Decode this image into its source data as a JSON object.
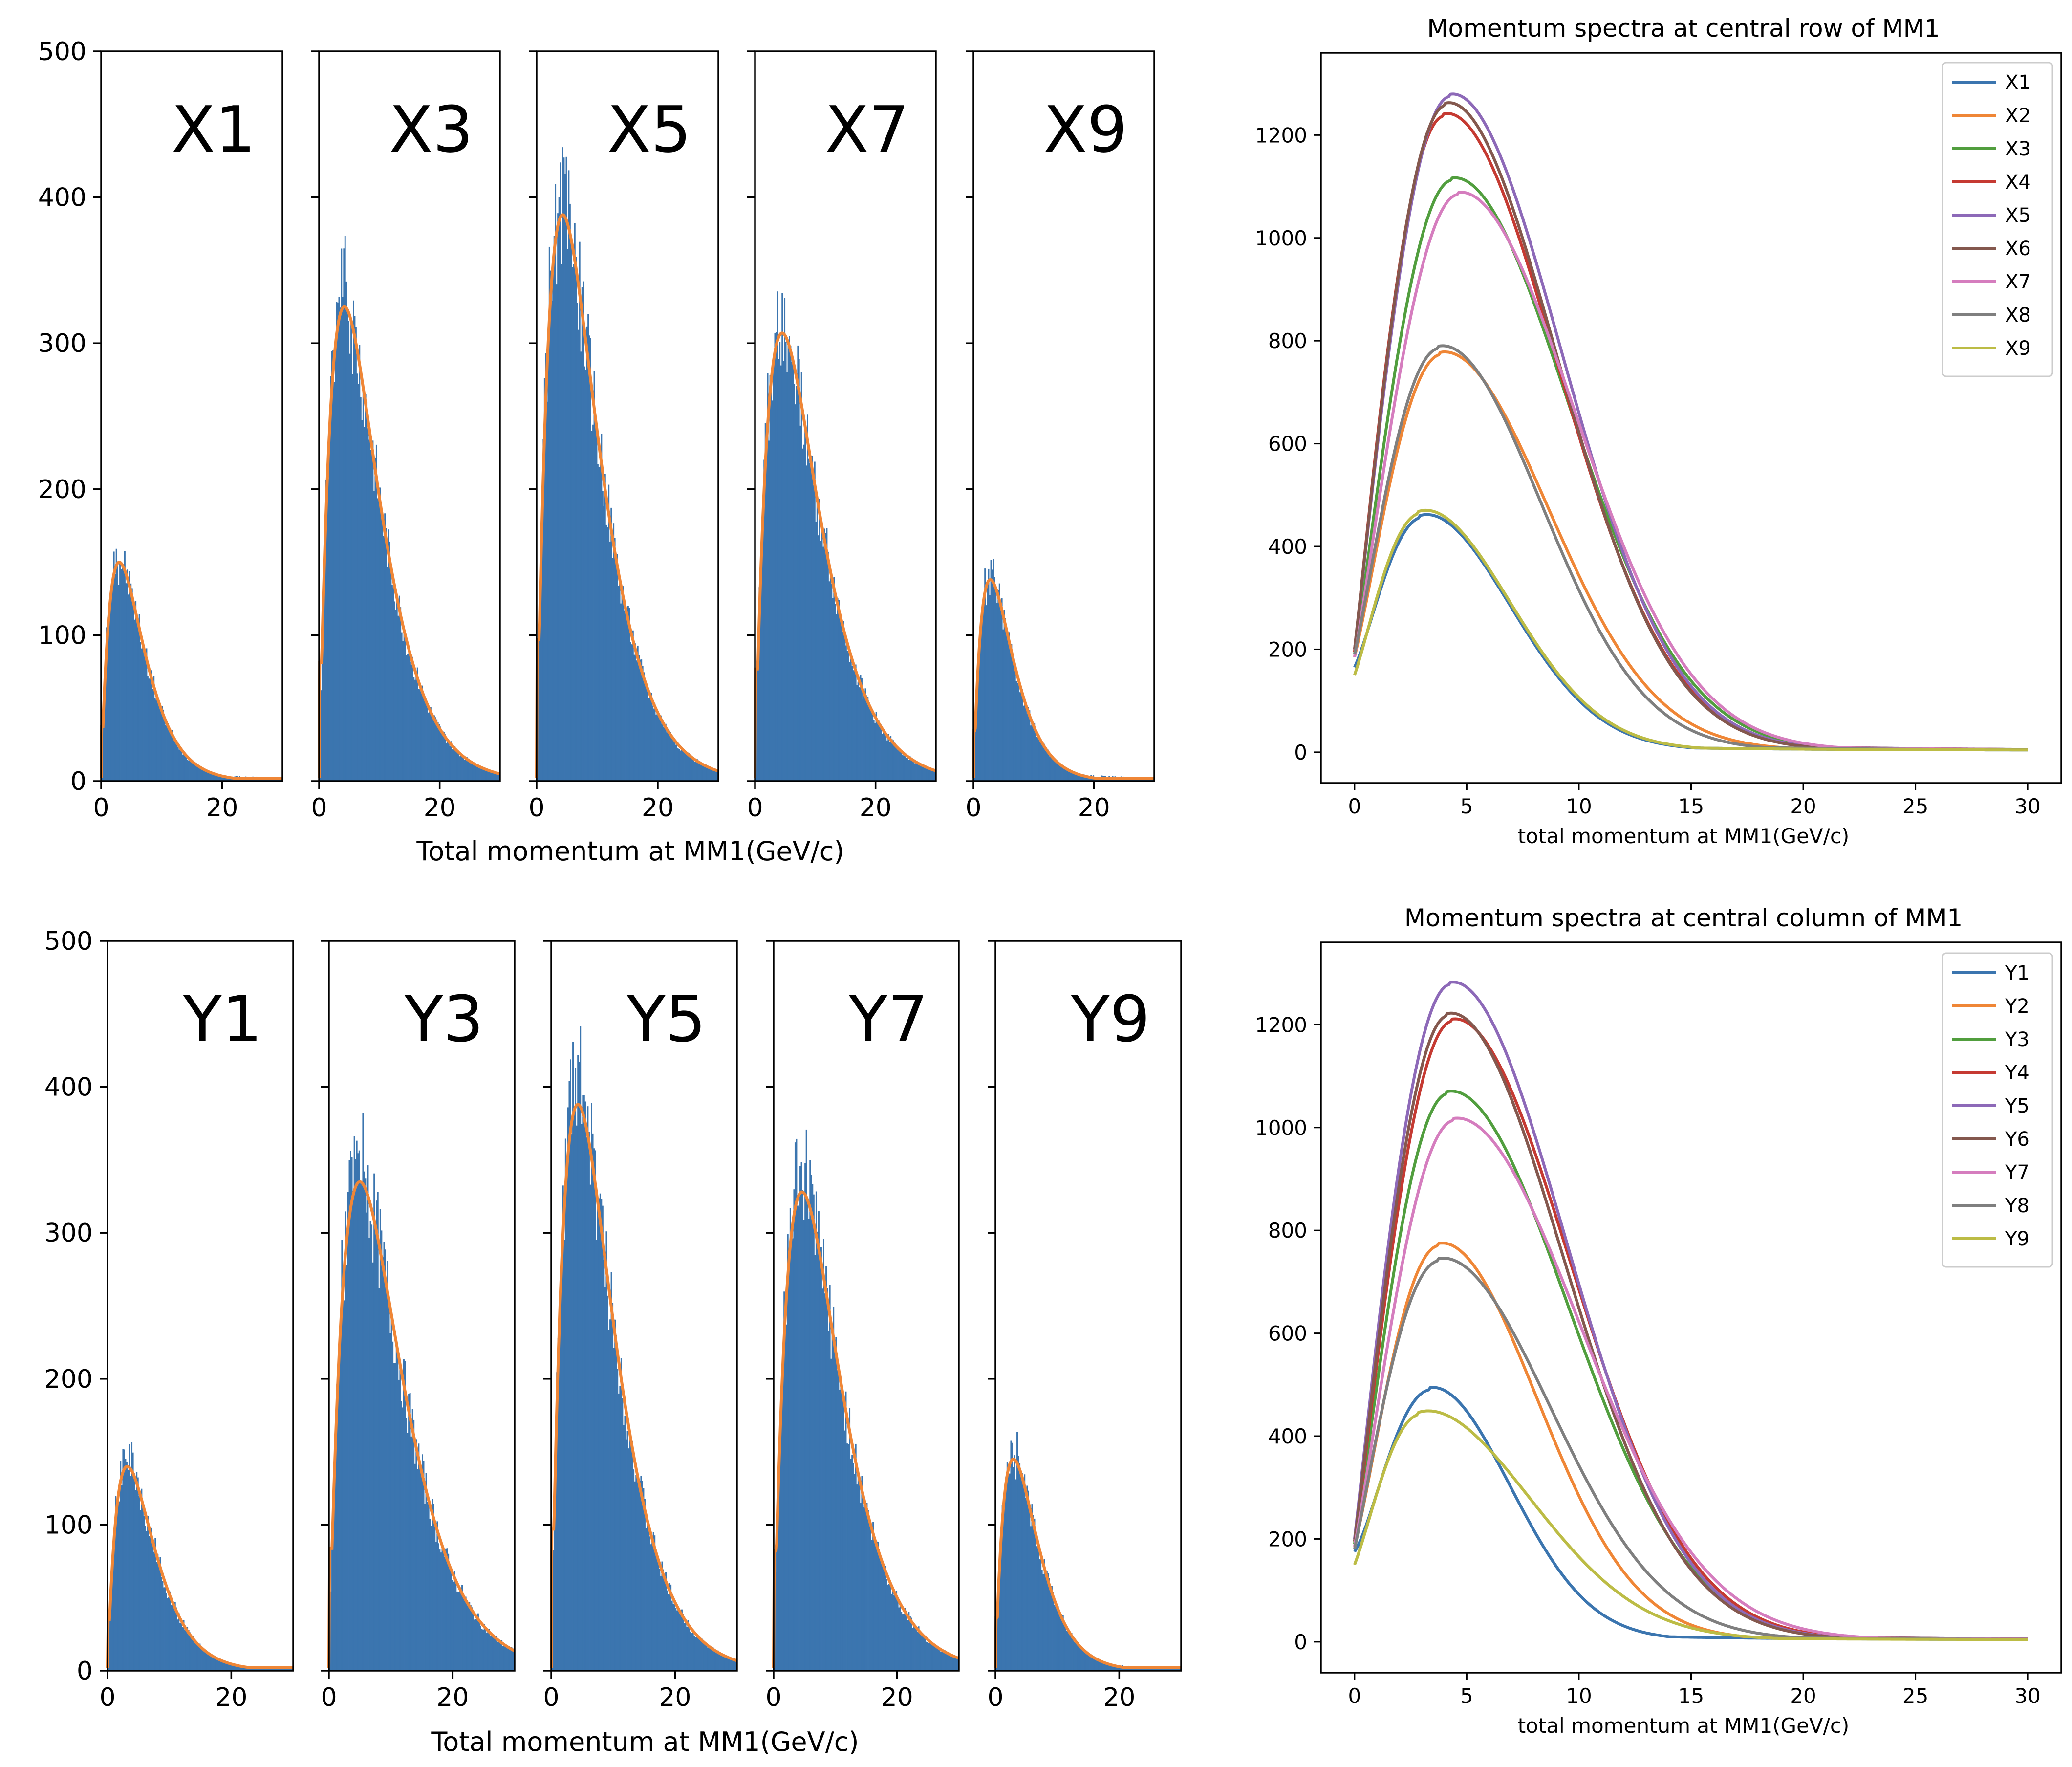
{
  "chart_data": [
    {
      "name": "row-histograms",
      "type": "bar",
      "xlabel": "Total momentum at MM1(GeV/c)",
      "ylabel": "",
      "xlim": [
        0,
        30
      ],
      "ylim": [
        0,
        500
      ],
      "yticks": [
        0,
        100,
        200,
        300,
        400,
        500
      ],
      "xticks": [
        0,
        20
      ],
      "bar_color": "#3b75af",
      "fit_color": "#ef8636",
      "panels": [
        {
          "label": "X1",
          "peak": 150,
          "mode": 3.0,
          "shape": 1.7
        },
        {
          "label": "X3",
          "peak": 325,
          "mode": 4.2,
          "shape": 1.75
        },
        {
          "label": "X5",
          "peak": 388,
          "mode": 4.3,
          "shape": 1.75
        },
        {
          "label": "X7",
          "peak": 307,
          "mode": 4.5,
          "shape": 1.75
        },
        {
          "label": "X9",
          "peak": 138,
          "mode": 2.8,
          "shape": 1.7
        }
      ]
    },
    {
      "name": "column-histograms",
      "type": "bar",
      "xlabel": "Total momentum at MM1(GeV/c)",
      "ylabel": "",
      "xlim": [
        0,
        30
      ],
      "ylim": [
        0,
        500
      ],
      "yticks": [
        0,
        100,
        200,
        300,
        400,
        500
      ],
      "xticks": [
        0,
        20
      ],
      "bar_color": "#3b75af",
      "fit_color": "#ef8636",
      "panels": [
        {
          "label": "Y1",
          "peak": 140,
          "mode": 3.2,
          "shape": 1.7
        },
        {
          "label": "Y3",
          "peak": 335,
          "mode": 5.0,
          "shape": 1.75
        },
        {
          "label": "Y5",
          "peak": 388,
          "mode": 4.3,
          "shape": 1.75
        },
        {
          "label": "Y7",
          "peak": 328,
          "mode": 4.6,
          "shape": 1.75
        },
        {
          "label": "Y9",
          "peak": 145,
          "mode": 2.9,
          "shape": 1.7
        }
      ]
    },
    {
      "name": "row-spectra",
      "type": "line",
      "title": "Momentum spectra at central row of MM1",
      "xlabel": "total momentum at MM1(GeV/c)",
      "ylabel": "",
      "xlim": [
        -1.5,
        31.5
      ],
      "ylim": [
        -60,
        1360
      ],
      "xticks": [
        0,
        5,
        10,
        15,
        20,
        25,
        30
      ],
      "yticks": [
        0,
        200,
        400,
        600,
        800,
        1000,
        1200
      ],
      "legend_position": "top-right",
      "series": [
        {
          "name": "X1",
          "color": "#3b75af",
          "peak": 468,
          "mode": 2.9,
          "sigma_left": 2.6,
          "sigma_right": 4.0,
          "start": 165
        },
        {
          "name": "X2",
          "color": "#ef8636",
          "peak": 782,
          "mode": 3.8,
          "sigma_left": 3.0,
          "sigma_right": 4.8,
          "start": 185
        },
        {
          "name": "X3",
          "color": "#519e3e",
          "peak": 1120,
          "mode": 4.3,
          "sigma_left": 3.2,
          "sigma_right": 5.2,
          "start": 190
        },
        {
          "name": "X4",
          "color": "#c53a32",
          "peak": 1250,
          "mode": 3.9,
          "sigma_left": 3.1,
          "sigma_right": 5.1,
          "start": 195
        },
        {
          "name": "X5",
          "color": "#8d69b8",
          "peak": 1285,
          "mode": 4.2,
          "sigma_left": 3.2,
          "sigma_right": 5.0,
          "start": 200
        },
        {
          "name": "X6",
          "color": "#84584e",
          "peak": 1270,
          "mode": 4.0,
          "sigma_left": 3.1,
          "sigma_right": 5.0,
          "start": 200
        },
        {
          "name": "X7",
          "color": "#d57dbe",
          "peak": 1090,
          "mode": 4.6,
          "sigma_left": 3.3,
          "sigma_right": 5.2,
          "start": 185
        },
        {
          "name": "X8",
          "color": "#7f7f7f",
          "peak": 795,
          "mode": 3.7,
          "sigma_left": 3.0,
          "sigma_right": 4.6,
          "start": 190
        },
        {
          "name": "X9",
          "color": "#bcbc45",
          "peak": 478,
          "mode": 2.8,
          "sigma_left": 2.6,
          "sigma_right": 4.1,
          "start": 150
        }
      ]
    },
    {
      "name": "column-spectra",
      "type": "line",
      "title": "Momentum spectra at central column of MM1",
      "xlabel": "total momentum at MM1(GeV/c)",
      "ylabel": "",
      "xlim": [
        -1.5,
        31.5
      ],
      "ylim": [
        -60,
        1360
      ],
      "xticks": [
        0,
        5,
        10,
        15,
        20,
        25,
        30
      ],
      "yticks": [
        0,
        200,
        400,
        600,
        800,
        1000,
        1200
      ],
      "legend_position": "top-right",
      "series": [
        {
          "name": "Y1",
          "color": "#3b75af",
          "peak": 498,
          "mode": 3.3,
          "sigma_left": 2.7,
          "sigma_right": 3.6,
          "start": 175
        },
        {
          "name": "Y2",
          "color": "#ef8636",
          "peak": 780,
          "mode": 3.7,
          "sigma_left": 2.9,
          "sigma_right": 4.4,
          "start": 185
        },
        {
          "name": "Y3",
          "color": "#519e3e",
          "peak": 1075,
          "mode": 4.1,
          "sigma_left": 3.1,
          "sigma_right": 5.4,
          "start": 190
        },
        {
          "name": "Y4",
          "color": "#c53a32",
          "peak": 1215,
          "mode": 4.3,
          "sigma_left": 3.2,
          "sigma_right": 5.3,
          "start": 195
        },
        {
          "name": "Y5",
          "color": "#8d69b8",
          "peak": 1288,
          "mode": 4.2,
          "sigma_left": 3.2,
          "sigma_right": 5.2,
          "start": 200
        },
        {
          "name": "Y6",
          "color": "#84584e",
          "peak": 1228,
          "mode": 4.1,
          "sigma_left": 3.1,
          "sigma_right": 5.2,
          "start": 195
        },
        {
          "name": "Y7",
          "color": "#d57dbe",
          "peak": 1020,
          "mode": 4.4,
          "sigma_left": 3.2,
          "sigma_right": 5.6,
          "start": 185
        },
        {
          "name": "Y8",
          "color": "#7f7f7f",
          "peak": 750,
          "mode": 3.7,
          "sigma_left": 3.1,
          "sigma_right": 5.0,
          "start": 180
        },
        {
          "name": "Y9",
          "color": "#bcbc45",
          "peak": 455,
          "mode": 2.8,
          "sigma_left": 2.6,
          "sigma_right": 5.0,
          "start": 150
        }
      ]
    }
  ]
}
